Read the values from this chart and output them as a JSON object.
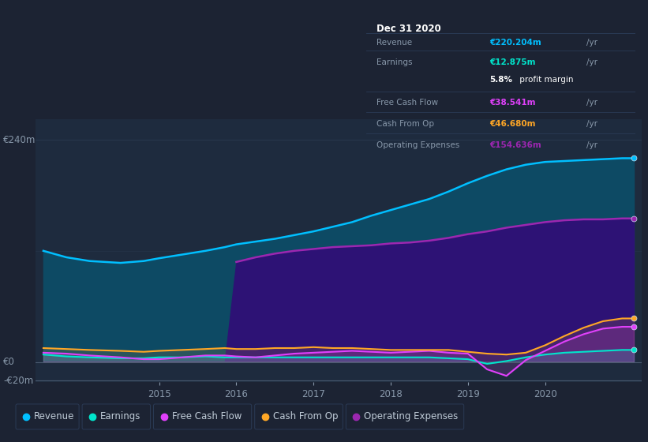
{
  "bg_color": "#1c2333",
  "plot_bg": "#1e2b3e",
  "grid_color": "#2a3a50",
  "text_color": "#8898aa",
  "white": "#ffffff",
  "revenue_color": "#00bfff",
  "earnings_color": "#00e5cc",
  "fcf_color": "#e040fb",
  "cashfromop_color": "#ffa726",
  "opex_color": "#9c27b0",
  "revenue_fill": "#0d4f6e",
  "opex_fill": "#311b8a",
  "tooltip_bg": "#050a15",
  "x": [
    2013.5,
    2013.8,
    2014.1,
    2014.5,
    2014.8,
    2015.0,
    2015.3,
    2015.6,
    2015.85,
    2016.0,
    2016.25,
    2016.5,
    2016.75,
    2017.0,
    2017.25,
    2017.5,
    2017.75,
    2018.0,
    2018.25,
    2018.5,
    2018.75,
    2019.0,
    2019.25,
    2019.5,
    2019.75,
    2020.0,
    2020.25,
    2020.5,
    2020.75,
    2021.0,
    2021.15
  ],
  "revenue": [
    120,
    113,
    109,
    107,
    109,
    112,
    116,
    120,
    124,
    127,
    130,
    133,
    137,
    141,
    146,
    151,
    158,
    164,
    170,
    176,
    184,
    193,
    201,
    208,
    213,
    216,
    217,
    218,
    219,
    220,
    220
  ],
  "earnings": [
    8,
    6,
    5,
    4,
    4,
    5,
    5,
    6,
    5,
    5,
    5,
    5,
    5,
    5,
    5,
    5,
    5,
    5,
    5,
    5,
    4,
    3,
    -2,
    1,
    5,
    8,
    10,
    11,
    12,
    13,
    13
  ],
  "fcf": [
    10,
    9,
    7,
    5,
    3,
    3,
    5,
    7,
    7,
    6,
    5,
    7,
    9,
    10,
    11,
    12,
    11,
    10,
    11,
    12,
    10,
    9,
    -8,
    -15,
    2,
    12,
    22,
    30,
    36,
    38,
    38
  ],
  "cashfromop": [
    15,
    14,
    13,
    12,
    11,
    12,
    13,
    14,
    15,
    14,
    14,
    15,
    15,
    16,
    15,
    15,
    14,
    13,
    13,
    13,
    13,
    11,
    9,
    8,
    10,
    18,
    28,
    37,
    44,
    47,
    47
  ],
  "opex": [
    0,
    0,
    0,
    0,
    0,
    0,
    0,
    0,
    0,
    108,
    113,
    117,
    120,
    122,
    124,
    125,
    126,
    128,
    129,
    131,
    134,
    138,
    141,
    145,
    148,
    151,
    153,
    154,
    154,
    155,
    155
  ],
  "xlim": [
    2013.4,
    2021.25
  ],
  "ylim": [
    -22,
    262
  ],
  "xticks": [
    2015,
    2016,
    2017,
    2018,
    2019,
    2020
  ],
  "ytick_labels": [
    "€240m",
    "€0",
    "-€20m"
  ],
  "ytick_vals": [
    240,
    0,
    -20
  ],
  "legend": [
    "Revenue",
    "Earnings",
    "Free Cash Flow",
    "Cash From Op",
    "Operating Expenses"
  ],
  "legend_colors": [
    "#00bfff",
    "#00e5cc",
    "#e040fb",
    "#ffa726",
    "#9c27b0"
  ],
  "tooltip": {
    "title": "Dec 31 2020",
    "rows": [
      {
        "label": "Revenue",
        "value": "€220.204m",
        "unit": "/yr",
        "color": "#00bfff",
        "divider_above": true
      },
      {
        "label": "Earnings",
        "value": "€12.875m",
        "unit": "/yr",
        "color": "#00e5cc",
        "divider_above": true
      },
      {
        "label": "",
        "value": "5.8%",
        "unit": " profit margin",
        "color": "#ffffff",
        "divider_above": false
      },
      {
        "label": "Free Cash Flow",
        "value": "€38.541m",
        "unit": "/yr",
        "color": "#e040fb",
        "divider_above": true
      },
      {
        "label": "Cash From Op",
        "value": "€46.680m",
        "unit": "/yr",
        "color": "#ffa726",
        "divider_above": true
      },
      {
        "label": "Operating Expenses",
        "value": "€154.636m",
        "unit": "/yr",
        "color": "#9c27b0",
        "divider_above": true
      }
    ]
  }
}
